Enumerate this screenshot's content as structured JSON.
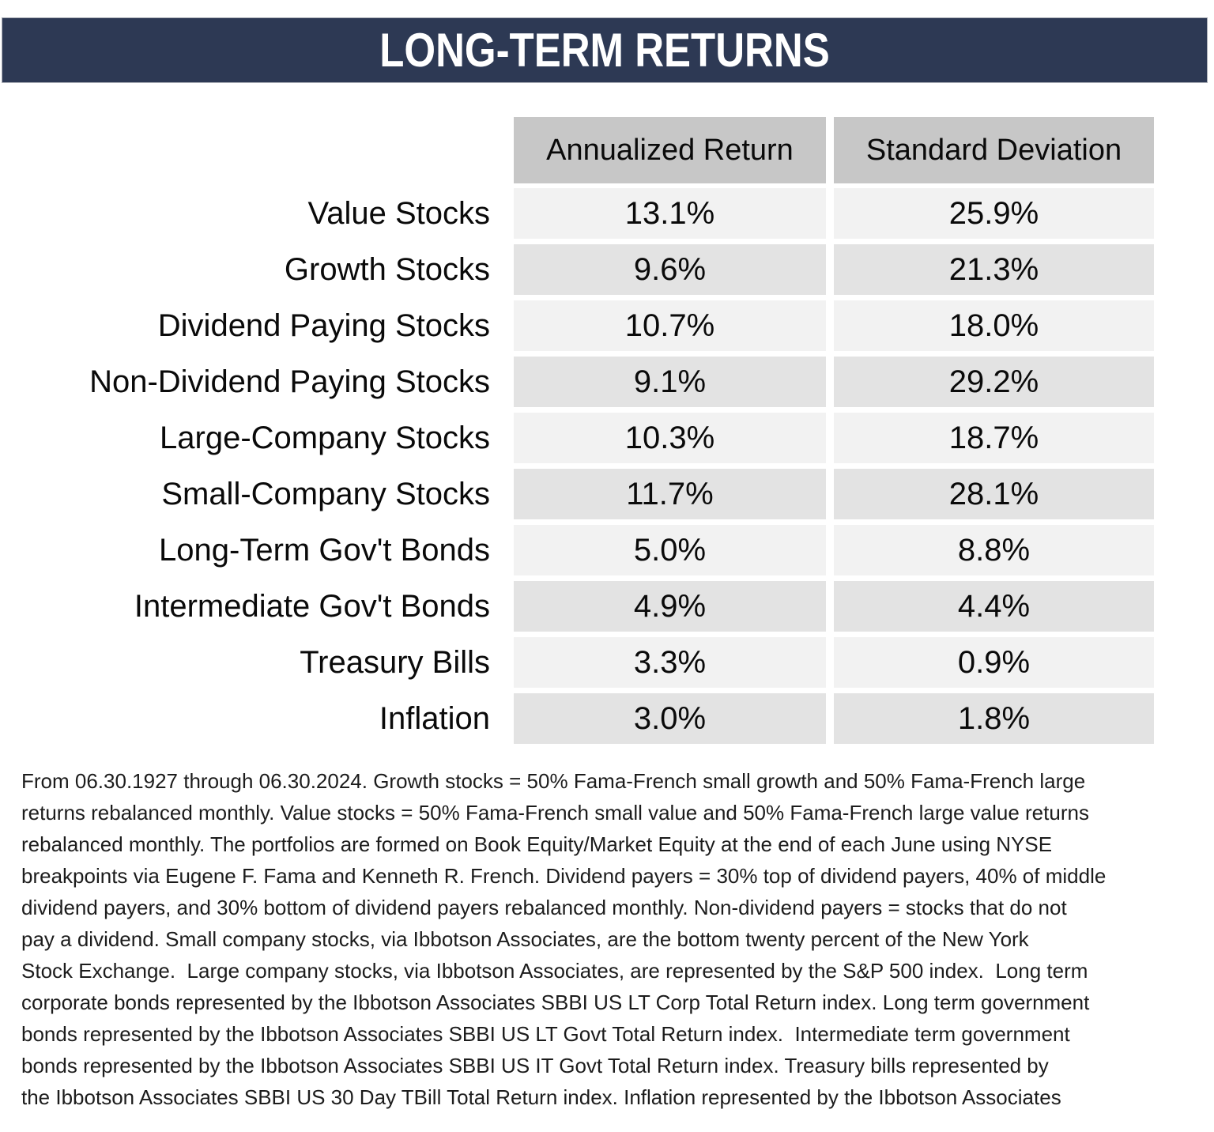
{
  "page": {
    "title": "LONG-TERM RETURNS"
  },
  "colors": {
    "title_bar_bg": "#2d3954",
    "title_text": "#ffffff",
    "column_header_bg": "#c7c7c7",
    "row_light_bg": "#f2f2f2",
    "row_dark_bg": "#e3e3e3",
    "text": "#0a0a0a"
  },
  "table": {
    "headers": {
      "annualized_return": "Annualized Return",
      "standard_deviation": "Standard Deviation"
    },
    "rows": [
      {
        "label": "Value Stocks",
        "annualized_return": "13.1%",
        "standard_deviation": "25.9%"
      },
      {
        "label": "Growth Stocks",
        "annualized_return": "9.6%",
        "standard_deviation": "21.3%"
      },
      {
        "label": "Dividend Paying Stocks",
        "annualized_return": "10.7%",
        "standard_deviation": "18.0%"
      },
      {
        "label": "Non-Dividend Paying Stocks",
        "annualized_return": "9.1%",
        "standard_deviation": "29.2%"
      },
      {
        "label": "Large-Company Stocks",
        "annualized_return": "10.3%",
        "standard_deviation": "18.7%"
      },
      {
        "label": "Small-Company Stocks",
        "annualized_return": "11.7%",
        "standard_deviation": "28.1%"
      },
      {
        "label": "Long-Term Gov't Bonds",
        "annualized_return": "5.0%",
        "standard_deviation": "8.8%"
      },
      {
        "label": "Intermediate Gov't Bonds",
        "annualized_return": "4.9%",
        "standard_deviation": "4.4%"
      },
      {
        "label": "Treasury Bills",
        "annualized_return": "3.3%",
        "standard_deviation": "0.9%"
      },
      {
        "label": "Inflation",
        "annualized_return": "3.0%",
        "standard_deviation": "1.8%"
      }
    ]
  },
  "footnote": {
    "lines": [
      "From 06.30.1927 through 06.30.2024. Growth stocks = 50% Fama-French small growth and 50% Fama-French large",
      "returns rebalanced monthly. Value stocks = 50% Fama-French small value and 50% Fama-French large value returns",
      "rebalanced monthly. The portfolios are formed on Book Equity/Market Equity at the end of each June using NYSE",
      "breakpoints via Eugene F. Fama and Kenneth R. French. Dividend payers = 30% top of dividend payers, 40% of middle",
      "dividend payers, and 30% bottom of dividend payers rebalanced monthly. Non-dividend payers = stocks that do not",
      "pay a dividend. Small company stocks, via Ibbotson Associates, are the bottom twenty percent of the New York",
      "Stock Exchange.  Large company stocks, via Ibbotson Associates, are represented by the S&P 500 index.  Long term",
      "corporate bonds represented by the Ibbotson Associates SBBI US LT Corp Total Return index. Long term government",
      "bonds represented by the Ibbotson Associates SBBI US LT Govt Total Return index.  Intermediate term government",
      "bonds represented by the Ibbotson Associates SBBI US IT Govt Total Return index. Treasury bills represented by",
      "the Ibbotson Associates SBBI US 30 Day TBill Total Return index. Inflation represented by the Ibbotson Associates"
    ]
  }
}
